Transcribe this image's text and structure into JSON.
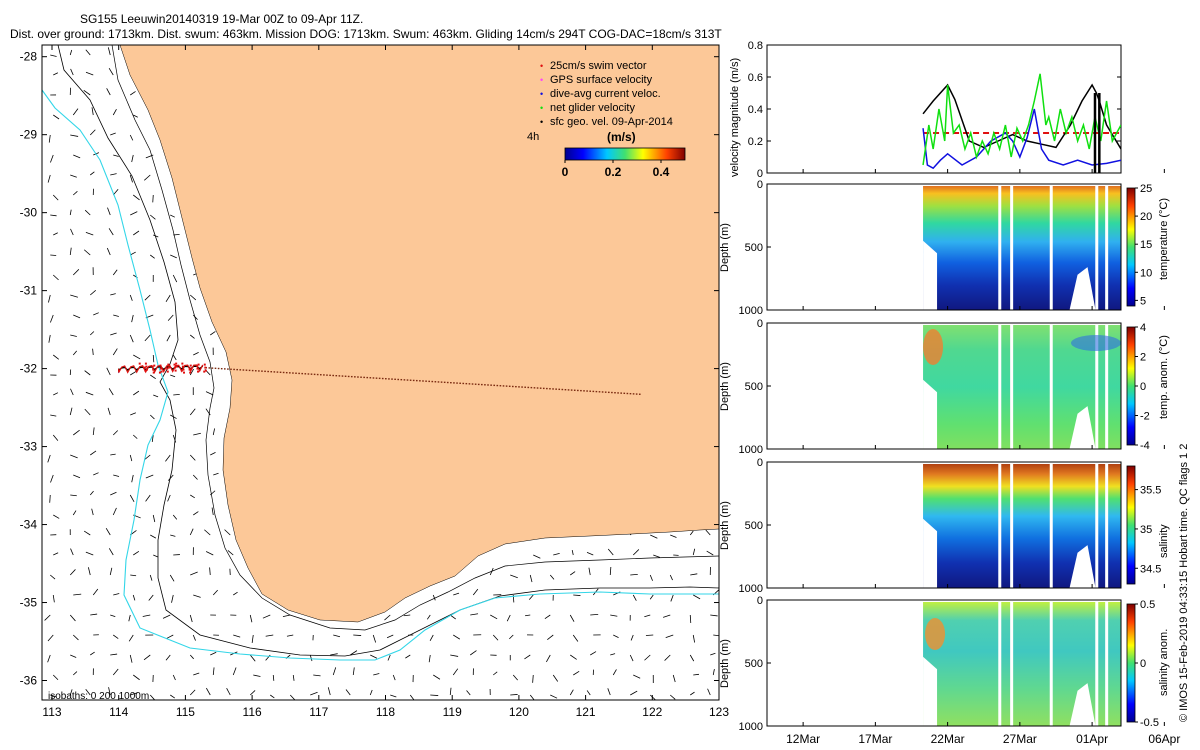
{
  "header": {
    "line1": "SG155 Leeuwin20140319 19-Mar 00Z to 09-Apr 11Z.",
    "line2": "Dist. over ground: 1713km. Dist. swum: 463km. Mission DOG: 1713km. Swum: 463km. Gliding 14cm/s 294T COG-DAC=18cm/s 313T"
  },
  "stamp": "© IMOS 15-Feb-2019 04:33:15 Hobart time. QC flags 1  2",
  "colors": {
    "land": "#fcc898",
    "isobath": "#000000",
    "isobath_1000": "#33d6e8",
    "swim": "#e01010",
    "gps": "#ff40ff",
    "dac": "#1010e0",
    "net": "#10e010",
    "geo": "#000000"
  },
  "chart_data": [
    {
      "type": "map",
      "id": "map",
      "xlabel": "",
      "ylabel": "",
      "xlim": [
        112.85,
        123
      ],
      "ylim": [
        -36.25,
        -27.85
      ],
      "x_ticks": [
        113,
        114,
        115,
        116,
        117,
        118,
        119,
        120,
        121,
        122,
        123
      ],
      "y_ticks": [
        -28,
        -29,
        -30,
        -31,
        -32,
        -33,
        -34,
        -35,
        -36
      ],
      "legend": [
        {
          "key": "swim",
          "label": "25cm/s swim vector"
        },
        {
          "key": "gps",
          "label": "GPS surface velocity"
        },
        {
          "key": "dac",
          "label": "dive-avg current veloc."
        },
        {
          "key": "net",
          "label": "net glider velocity"
        },
        {
          "key": "geo",
          "label": "sfc geo. vel. 09-Apr-2014"
        }
      ],
      "legend_placement": "top-right",
      "time_label": "4h",
      "colorbar": {
        "label": "(m/s)",
        "ticks": [
          0,
          0.2,
          0.4
        ],
        "range": [
          0,
          0.5
        ]
      },
      "isobath_label": "isobaths: 0   200  1000m",
      "glider_track": {
        "lon_start": 114.0,
        "lon_end": 115.3,
        "lat": -32.0
      },
      "geo_transect": {
        "lon": [
          115.3,
          121.8
        ],
        "lat": [
          -31.98,
          -32.32
        ]
      }
    },
    {
      "type": "line",
      "id": "velocity",
      "ylabel": "velocity magnitude (m/s)",
      "ylim": [
        0,
        0.8
      ],
      "y_ticks": [
        0,
        0.2,
        0.4,
        0.6,
        0.8
      ],
      "xlim": [
        9.5,
        34.0
      ],
      "series": [
        {
          "name": "25cm/s swim vector",
          "color": "#e01010",
          "style": "dashed",
          "x": [
            20.3,
            34.0
          ],
          "y": [
            0.25,
            0.25
          ]
        },
        {
          "name": "surface velocity",
          "color": "#000000",
          "x": [
            20.3,
            21.0,
            22.0,
            22.5,
            23.5,
            24.5,
            25.5,
            26.5,
            27.5,
            28.5,
            29.5,
            30.5,
            31.3,
            32.0,
            32.3,
            32.5,
            33.0,
            34.0
          ],
          "y": [
            0.37,
            0.45,
            0.55,
            0.46,
            0.2,
            0.16,
            0.2,
            0.24,
            0.2,
            0.18,
            0.16,
            0.3,
            0.45,
            0.55,
            0.5,
            0.45,
            0.3,
            0.15
          ]
        },
        {
          "name": "dive-avg current veloc.",
          "color": "#1010e0",
          "x": [
            20.3,
            20.6,
            21.0,
            21.5,
            22.0,
            23.0,
            24.0,
            25.0,
            26.0,
            26.5,
            27.0,
            27.5,
            28.0,
            28.5,
            29.0,
            30.0,
            31.0,
            32.0,
            33.0,
            34.0
          ],
          "y": [
            0.28,
            0.05,
            0.03,
            0.08,
            0.12,
            0.05,
            0.1,
            0.2,
            0.25,
            0.2,
            0.1,
            0.22,
            0.4,
            0.15,
            0.08,
            0.05,
            0.08,
            0.05,
            0.06,
            0.08
          ]
        },
        {
          "name": "net glider velocity",
          "color": "#10e010",
          "x": [
            20.3,
            20.7,
            21.0,
            21.4,
            21.8,
            22.0,
            22.4,
            22.8,
            23.2,
            23.6,
            24.0,
            24.4,
            24.8,
            25.2,
            25.6,
            26.0,
            26.4,
            26.8,
            27.2,
            27.6,
            28.0,
            28.4,
            28.8,
            29.0,
            29.4,
            29.8,
            30.2,
            30.6,
            31.0,
            31.4,
            31.8,
            32.2,
            32.6,
            33.0,
            33.4,
            34.0
          ],
          "y": [
            0.05,
            0.3,
            0.15,
            0.4,
            0.2,
            0.55,
            0.25,
            0.3,
            0.15,
            0.25,
            0.1,
            0.2,
            0.12,
            0.25,
            0.15,
            0.3,
            0.1,
            0.28,
            0.2,
            0.3,
            0.45,
            0.62,
            0.3,
            0.35,
            0.2,
            0.4,
            0.25,
            0.35,
            0.2,
            0.3,
            0.15,
            0.35,
            0.2,
            0.45,
            0.2,
            0.3
          ]
        }
      ],
      "glitch_markers": [
        32.2,
        32.5
      ]
    },
    {
      "type": "heatmap",
      "id": "temperature",
      "ylabel": "Depth (m)",
      "cbar_label": "temperature (°C)",
      "ylim": [
        1000,
        0
      ],
      "y_ticks": [
        0,
        500,
        1000
      ],
      "clim": [
        4,
        25
      ],
      "cbar_ticks": [
        5,
        10,
        15,
        20,
        25
      ]
    },
    {
      "type": "heatmap",
      "id": "temp-anomaly",
      "ylabel": "Depth (m)",
      "cbar_label": "temp. anom. (°C)",
      "ylim": [
        1000,
        0
      ],
      "y_ticks": [
        0,
        500,
        1000
      ],
      "clim": [
        -4,
        4
      ],
      "cbar_ticks": [
        -4,
        -2,
        0,
        2,
        4
      ]
    },
    {
      "type": "heatmap",
      "id": "salinity",
      "ylabel": "Depth (m)",
      "cbar_label": "salinity",
      "ylim": [
        1000,
        0
      ],
      "y_ticks": [
        0,
        500,
        1000
      ],
      "clim": [
        34.3,
        35.8
      ],
      "cbar_ticks": [
        34.5,
        35,
        35.5
      ]
    },
    {
      "type": "heatmap",
      "id": "salinity-anomaly",
      "ylabel": "Depth (m)",
      "cbar_label": "salinity anom.",
      "ylim": [
        1000,
        0
      ],
      "y_ticks": [
        0,
        500,
        1000
      ],
      "clim": [
        -0.5,
        0.5
      ],
      "cbar_ticks": [
        -0.5,
        0,
        0.5
      ],
      "x_ticks": [
        12,
        17,
        22,
        27,
        32,
        37
      ],
      "x_tick_labels": [
        "12Mar",
        "17Mar",
        "22Mar",
        "27Mar",
        "01Apr",
        "06Apr"
      ]
    }
  ]
}
